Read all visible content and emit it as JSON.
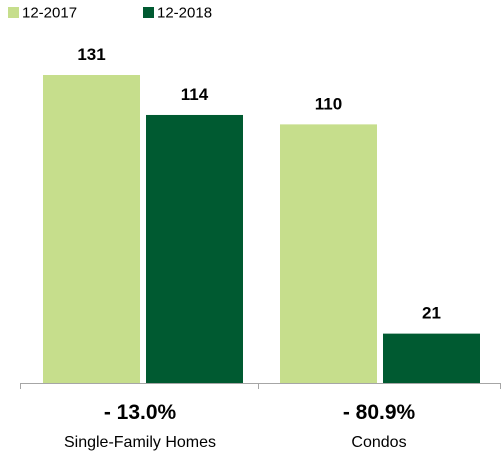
{
  "chart_data": {
    "type": "bar",
    "categories": [
      "Single-Family Homes",
      "Condos"
    ],
    "series": [
      {
        "name": "12-2017",
        "values": [
          131,
          110
        ],
        "color": "#c6de8c"
      },
      {
        "name": "12-2018",
        "values": [
          114,
          21
        ],
        "color": "#005a31"
      }
    ],
    "changes": [
      "- 13.0%",
      "- 80.9%"
    ],
    "legend_position": "top-left",
    "ylim": [
      0,
      131
    ],
    "grid": false,
    "axis_color": "#a6a6a6",
    "title": "",
    "xlabel": "",
    "ylabel": ""
  }
}
